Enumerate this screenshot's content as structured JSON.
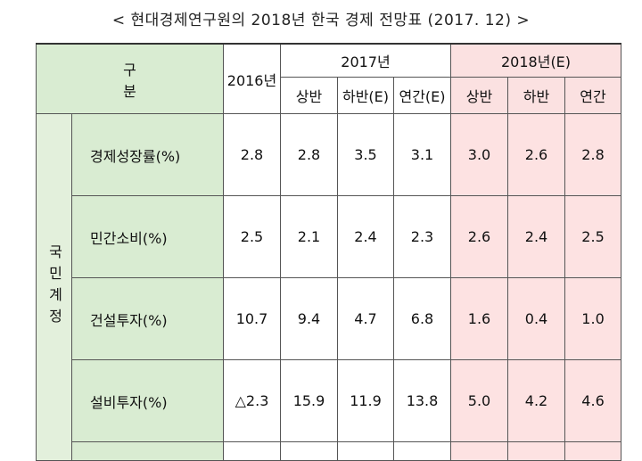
{
  "title": "< 현대경제연구원의 2018년 한국 경제 전망표 (2017. 12) >",
  "header": {
    "gubun": "구 분",
    "y2016": "2016년",
    "y2017": "2017년",
    "y2018": "2018년(E)",
    "sub2017": [
      "상반",
      "하반(E)",
      "연간(E)"
    ],
    "sub2018": [
      "상반",
      "하반",
      "연간"
    ]
  },
  "group": "국민계정",
  "rows": [
    {
      "label": "경제성장률(%)",
      "v2016": "2.8",
      "v2017": [
        "2.8",
        "3.5",
        "3.1"
      ],
      "v2018": [
        "3.0",
        "2.6",
        "2.8"
      ]
    },
    {
      "label": "민간소비(%)",
      "v2016": "2.5",
      "v2017": [
        "2.1",
        "2.4",
        "2.3"
      ],
      "v2018": [
        "2.6",
        "2.4",
        "2.5"
      ]
    },
    {
      "label": "건설투자(%)",
      "v2016": "10.7",
      "v2017": [
        "9.4",
        "4.7",
        "6.8"
      ],
      "v2018": [
        "1.6",
        "0.4",
        "1.0"
      ]
    },
    {
      "label": "설비투자(%)",
      "v2016": "△2.3",
      "v2017": [
        "15.9",
        "11.9",
        "13.8"
      ],
      "v2018": [
        "5.0",
        "4.2",
        "4.6"
      ]
    }
  ],
  "colors": {
    "header_green": "#d9ecd2",
    "forecast_pink": "#fde2e2"
  }
}
